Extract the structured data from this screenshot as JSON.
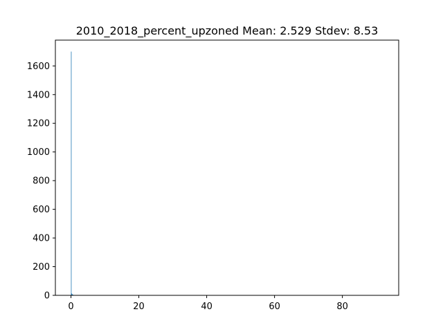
{
  "chart_data": {
    "type": "bar",
    "title": "2010_2018_percent_upzoned  Mean: 2.529  Stdev: 8.53",
    "xlabel": "",
    "ylabel": "",
    "xlim": [
      -4.6,
      96.6
    ],
    "ylim": [
      0,
      1780
    ],
    "xticks": [
      0,
      20,
      40,
      60,
      80
    ],
    "yticks": [
      0,
      200,
      400,
      600,
      800,
      1000,
      1200,
      1400,
      1600
    ],
    "bar_color": "#1f77b4",
    "bar_width": 0.09,
    "x": [
      0.0,
      0.1,
      0.2,
      0.3,
      0.4,
      0.5,
      0.6,
      0.8,
      1.0,
      1.3,
      1.7,
      2.2,
      3.0,
      3.8,
      9.3,
      10.4,
      11.3
    ],
    "values": [
      1700,
      14,
      10,
      7,
      5,
      4,
      3,
      2,
      2,
      1,
      1,
      1,
      1,
      1,
      1,
      1,
      1
    ],
    "grid": false,
    "legend": "none"
  }
}
